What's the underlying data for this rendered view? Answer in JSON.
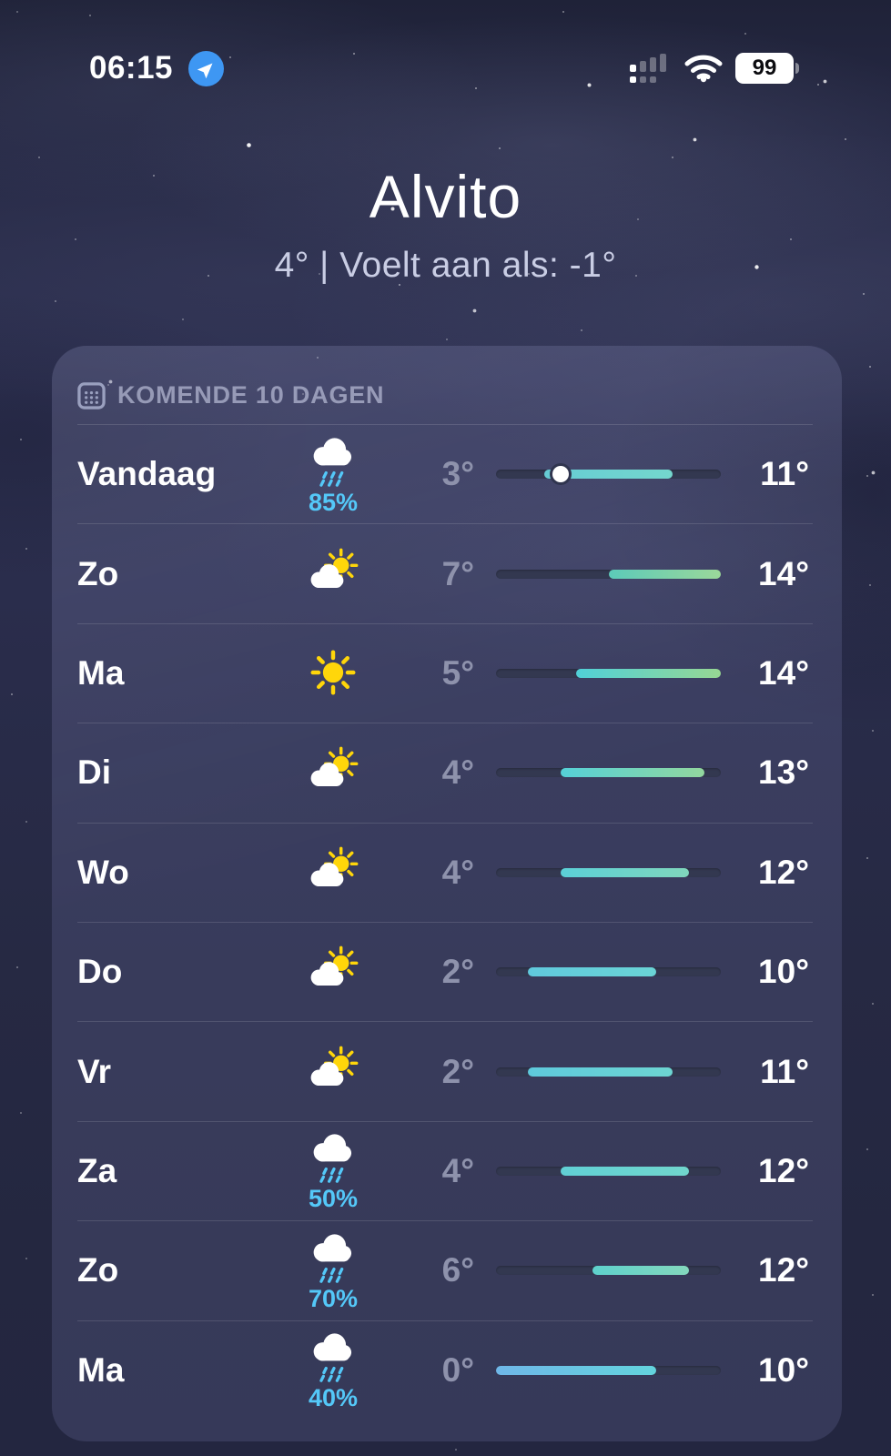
{
  "status_bar": {
    "time": "06:15",
    "location_services": "active",
    "cellular_signal": "dual-sim 1 bar",
    "wifi": "full",
    "battery_level": "99"
  },
  "location_header": {
    "city": "Alvito",
    "summary": "4°  |  Voelt aan als: -1°"
  },
  "forecast_card": {
    "title": "KOMENDE 10 DAGEN",
    "temp_scale": {
      "min": 0,
      "max": 14
    },
    "accent_precip_color": "#54c8f8",
    "days": [
      {
        "day": "Vandaag",
        "icon": "rain-cloud",
        "precip": "85%",
        "low": 3,
        "high": 11,
        "current": 4,
        "bar_from": "#66ccd4",
        "bar_to": "#74d7cd"
      },
      {
        "day": "Zo",
        "icon": "sun-behind-cloud",
        "precip": null,
        "low": 7,
        "high": 14,
        "current": null,
        "bar_from": "#5ccab9",
        "bar_to": "#9bd89a"
      },
      {
        "day": "Ma",
        "icon": "sun",
        "precip": null,
        "low": 5,
        "high": 14,
        "current": null,
        "bar_from": "#50d0d8",
        "bar_to": "#97d793"
      },
      {
        "day": "Di",
        "icon": "sun-behind-cloud",
        "precip": null,
        "low": 4,
        "high": 13,
        "current": null,
        "bar_from": "#55d1d8",
        "bar_to": "#92d79e"
      },
      {
        "day": "Wo",
        "icon": "sun-behind-cloud",
        "precip": null,
        "low": 4,
        "high": 12,
        "current": null,
        "bar_from": "#5bd0d7",
        "bar_to": "#80d7bc"
      },
      {
        "day": "Do",
        "icon": "sun-behind-cloud",
        "precip": null,
        "low": 2,
        "high": 10,
        "current": null,
        "bar_from": "#60c9dd",
        "bar_to": "#6ad4d6"
      },
      {
        "day": "Vr",
        "icon": "sun-behind-cloud",
        "precip": null,
        "low": 2,
        "high": 11,
        "current": null,
        "bar_from": "#5ec9dc",
        "bar_to": "#6dd5d2"
      },
      {
        "day": "Za",
        "icon": "rain-cloud",
        "precip": "50%",
        "low": 4,
        "high": 12,
        "current": null,
        "bar_from": "#61d0d5",
        "bar_to": "#71d6cd"
      },
      {
        "day": "Zo",
        "icon": "rain-cloud",
        "precip": "70%",
        "low": 6,
        "high": 12,
        "current": null,
        "bar_from": "#5ed1cc",
        "bar_to": "#84d8bd"
      },
      {
        "day": "Ma",
        "icon": "rain-cloud",
        "precip": "40%",
        "low": 0,
        "high": 10,
        "current": null,
        "bar_from": "#6fb7e8",
        "bar_to": "#63d4dd"
      }
    ]
  }
}
